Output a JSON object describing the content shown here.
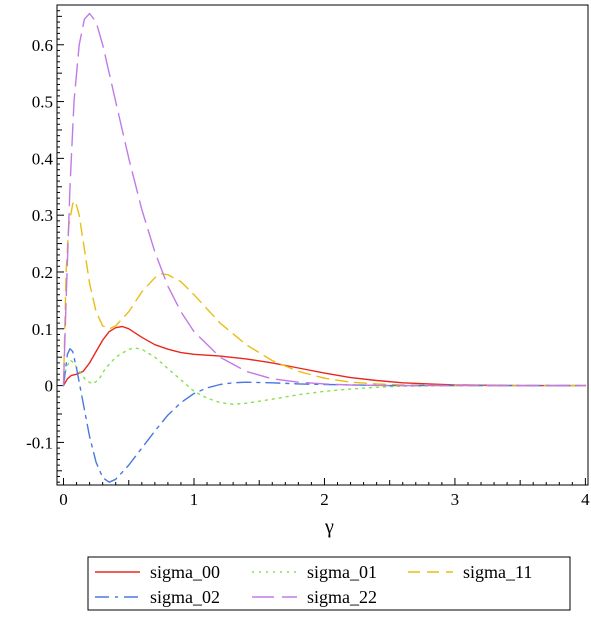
{
  "chart_data": {
    "type": "line",
    "xlabel": "γ",
    "ylabel": "",
    "xlim": [
      -0.05,
      4.02
    ],
    "ylim": [
      -0.175,
      0.67
    ],
    "x_ticks": [
      0,
      1,
      2,
      3,
      4
    ],
    "x_tick_labels": [
      "0",
      "1",
      "2",
      "3",
      "4"
    ],
    "y_ticks": [
      -0.1,
      0,
      0.1,
      0.2,
      0.3,
      0.4,
      0.5,
      0.6
    ],
    "y_tick_labels": [
      "-0.1",
      "0",
      "0.1",
      "0.2",
      "0.3",
      "0.4",
      "0.5",
      "0.6"
    ],
    "grid": false,
    "legend_position": "bottom",
    "series": [
      {
        "name": "sigma_00",
        "color": "#e8281e",
        "style": "solid",
        "points": [
          [
            0,
            0
          ],
          [
            0.03,
            0.012
          ],
          [
            0.06,
            0.018
          ],
          [
            0.1,
            0.02
          ],
          [
            0.15,
            0.025
          ],
          [
            0.2,
            0.04
          ],
          [
            0.25,
            0.06
          ],
          [
            0.3,
            0.08
          ],
          [
            0.35,
            0.095
          ],
          [
            0.4,
            0.102
          ],
          [
            0.45,
            0.104
          ],
          [
            0.5,
            0.1
          ],
          [
            0.6,
            0.085
          ],
          [
            0.7,
            0.072
          ],
          [
            0.8,
            0.064
          ],
          [
            0.9,
            0.058
          ],
          [
            1.0,
            0.055
          ],
          [
            1.2,
            0.052
          ],
          [
            1.4,
            0.047
          ],
          [
            1.6,
            0.04
          ],
          [
            1.8,
            0.031
          ],
          [
            2.0,
            0.022
          ],
          [
            2.2,
            0.014
          ],
          [
            2.4,
            0.009
          ],
          [
            2.6,
            0.005
          ],
          [
            2.8,
            0.003
          ],
          [
            3.0,
            0.001
          ],
          [
            3.5,
            0.0
          ],
          [
            4.0,
            0.0
          ]
        ]
      },
      {
        "name": "sigma_01",
        "color": "#84e34a",
        "style": "dotted",
        "points": [
          [
            0,
            0
          ],
          [
            0.02,
            0.03
          ],
          [
            0.05,
            0.045
          ],
          [
            0.08,
            0.04
          ],
          [
            0.12,
            0.025
          ],
          [
            0.17,
            0.01
          ],
          [
            0.22,
            0.003
          ],
          [
            0.27,
            0.01
          ],
          [
            0.32,
            0.03
          ],
          [
            0.4,
            0.05
          ],
          [
            0.5,
            0.064
          ],
          [
            0.55,
            0.066
          ],
          [
            0.6,
            0.064
          ],
          [
            0.7,
            0.05
          ],
          [
            0.8,
            0.03
          ],
          [
            0.9,
            0.01
          ],
          [
            1.0,
            -0.01
          ],
          [
            1.1,
            -0.022
          ],
          [
            1.2,
            -0.03
          ],
          [
            1.3,
            -0.033
          ],
          [
            1.4,
            -0.031
          ],
          [
            1.6,
            -0.024
          ],
          [
            1.8,
            -0.016
          ],
          [
            2.0,
            -0.01
          ],
          [
            2.2,
            -0.006
          ],
          [
            2.4,
            -0.003
          ],
          [
            2.6,
            -0.001
          ],
          [
            3.0,
            0.0
          ],
          [
            4.0,
            0.0
          ]
        ]
      },
      {
        "name": "sigma_11",
        "color": "#e8be14",
        "style": "dashed",
        "points": [
          [
            0,
            0
          ],
          [
            0.02,
            0.2
          ],
          [
            0.04,
            0.28
          ],
          [
            0.07,
            0.32
          ],
          [
            0.09,
            0.325
          ],
          [
            0.12,
            0.3
          ],
          [
            0.16,
            0.24
          ],
          [
            0.2,
            0.18
          ],
          [
            0.25,
            0.13
          ],
          [
            0.3,
            0.105
          ],
          [
            0.35,
            0.1
          ],
          [
            0.4,
            0.105
          ],
          [
            0.5,
            0.13
          ],
          [
            0.6,
            0.165
          ],
          [
            0.7,
            0.19
          ],
          [
            0.75,
            0.197
          ],
          [
            0.8,
            0.195
          ],
          [
            0.9,
            0.183
          ],
          [
            1.0,
            0.16
          ],
          [
            1.2,
            0.11
          ],
          [
            1.4,
            0.072
          ],
          [
            1.6,
            0.044
          ],
          [
            1.8,
            0.025
          ],
          [
            2.0,
            0.013
          ],
          [
            2.2,
            0.006
          ],
          [
            2.4,
            0.003
          ],
          [
            2.6,
            0.001
          ],
          [
            3.0,
            0.0
          ],
          [
            4.0,
            0.0
          ]
        ]
      },
      {
        "name": "sigma_02",
        "color": "#4a78e0",
        "style": "dashdot",
        "points": [
          [
            0,
            0
          ],
          [
            0.03,
            0.055
          ],
          [
            0.05,
            0.065
          ],
          [
            0.07,
            0.06
          ],
          [
            0.1,
            0.03
          ],
          [
            0.15,
            -0.03
          ],
          [
            0.2,
            -0.09
          ],
          [
            0.25,
            -0.135
          ],
          [
            0.3,
            -0.162
          ],
          [
            0.35,
            -0.17
          ],
          [
            0.4,
            -0.165
          ],
          [
            0.5,
            -0.14
          ],
          [
            0.6,
            -0.11
          ],
          [
            0.7,
            -0.08
          ],
          [
            0.8,
            -0.052
          ],
          [
            0.9,
            -0.03
          ],
          [
            1.0,
            -0.014
          ],
          [
            1.1,
            -0.004
          ],
          [
            1.2,
            0.002
          ],
          [
            1.3,
            0.005
          ],
          [
            1.4,
            0.006
          ],
          [
            1.6,
            0.005
          ],
          [
            1.8,
            0.003
          ],
          [
            2.0,
            0.002
          ],
          [
            2.5,
            0.0
          ],
          [
            3.0,
            0.0
          ],
          [
            4.0,
            0.0
          ]
        ]
      },
      {
        "name": "sigma_22",
        "color": "#c07ae8",
        "style": "longdash",
        "points": [
          [
            0,
            0
          ],
          [
            0.02,
            0.15
          ],
          [
            0.05,
            0.35
          ],
          [
            0.08,
            0.5
          ],
          [
            0.12,
            0.6
          ],
          [
            0.16,
            0.645
          ],
          [
            0.2,
            0.655
          ],
          [
            0.25,
            0.64
          ],
          [
            0.3,
            0.6
          ],
          [
            0.4,
            0.5
          ],
          [
            0.5,
            0.4
          ],
          [
            0.6,
            0.31
          ],
          [
            0.7,
            0.235
          ],
          [
            0.8,
            0.175
          ],
          [
            0.9,
            0.13
          ],
          [
            1.0,
            0.095
          ],
          [
            1.2,
            0.05
          ],
          [
            1.4,
            0.025
          ],
          [
            1.6,
            0.012
          ],
          [
            1.8,
            0.006
          ],
          [
            2.0,
            0.003
          ],
          [
            2.2,
            0.001
          ],
          [
            2.5,
            0.0
          ],
          [
            3.0,
            0.0
          ],
          [
            4.0,
            0.0
          ]
        ]
      }
    ]
  }
}
